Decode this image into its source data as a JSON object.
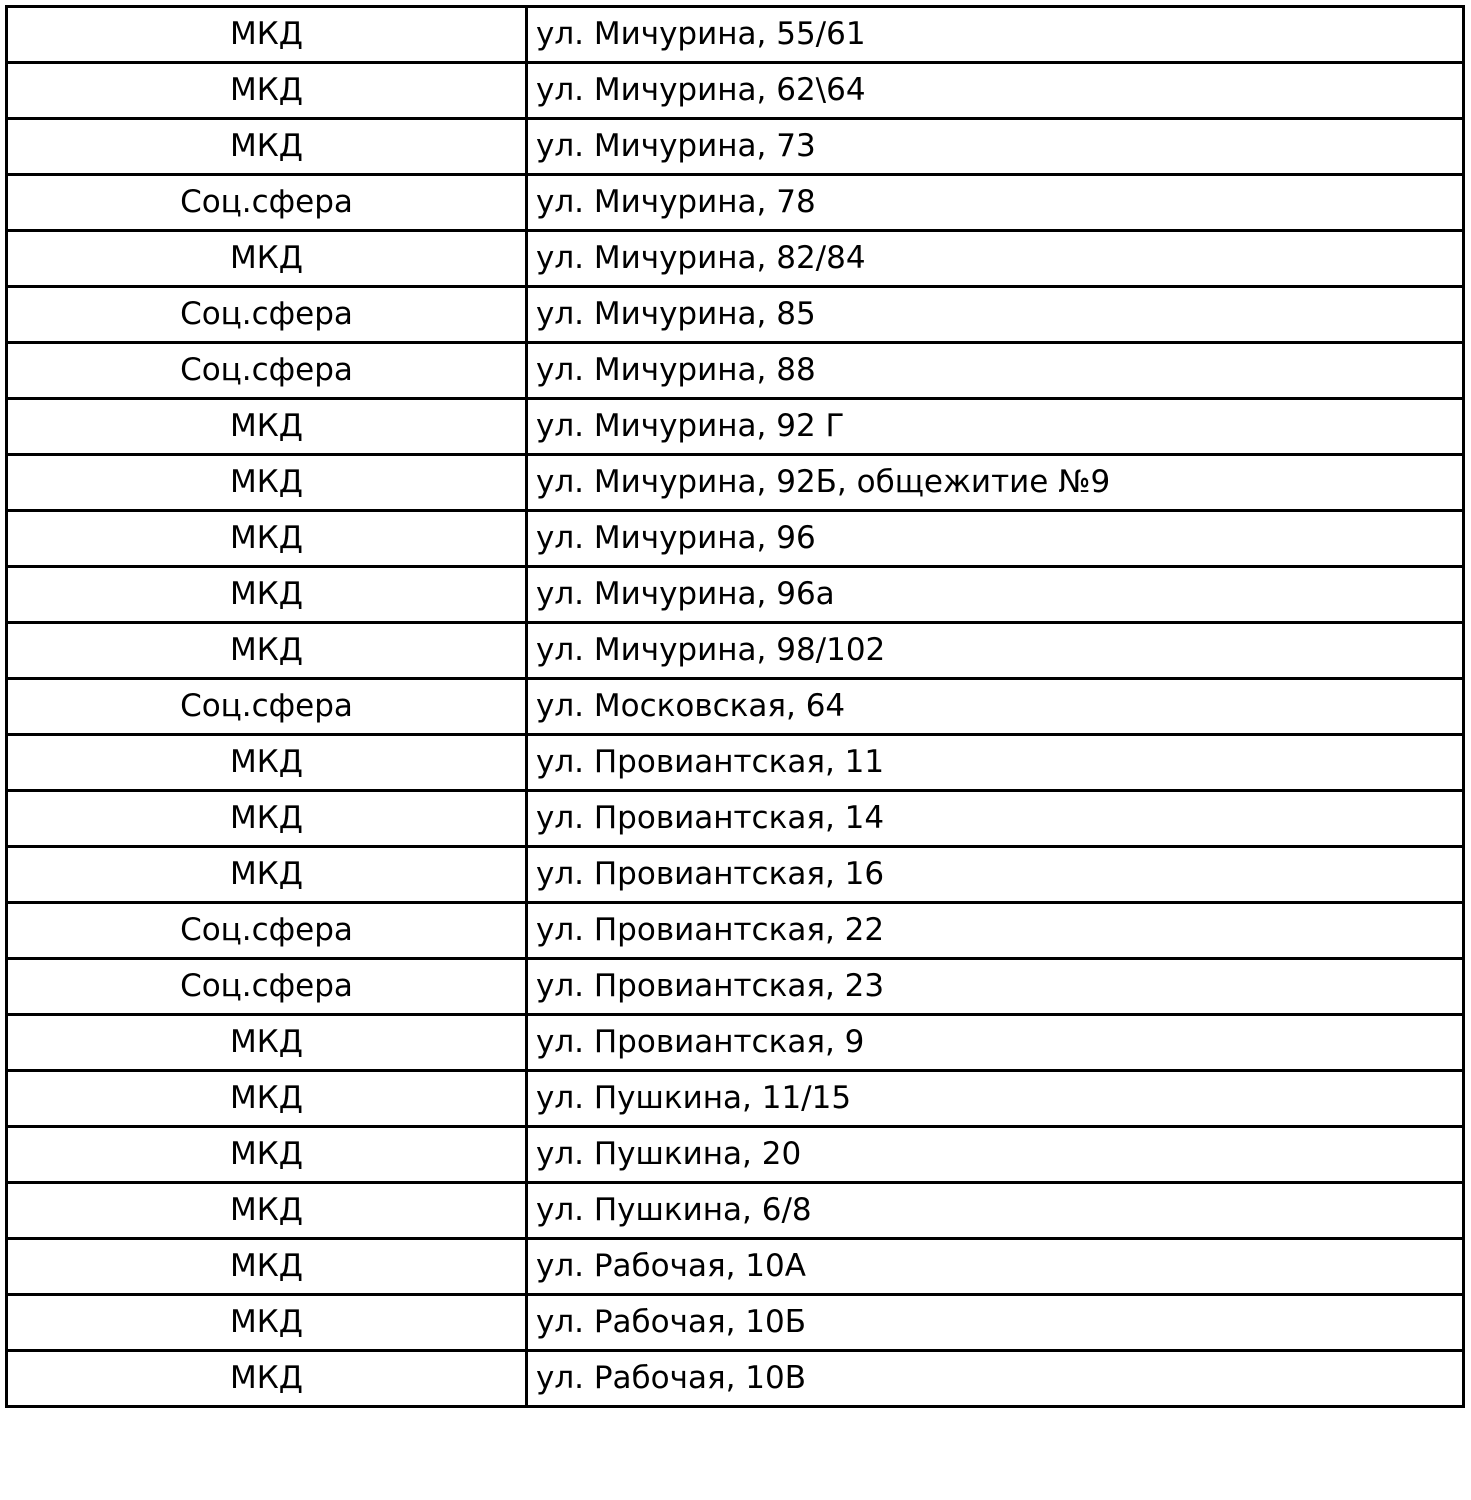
{
  "rows": [
    {
      "type": "МКД",
      "address": "ул. Мичурина, 55/61"
    },
    {
      "type": "МКД",
      "address": "ул. Мичурина, 62\\64"
    },
    {
      "type": "МКД",
      "address": "ул. Мичурина, 73"
    },
    {
      "type": "Соц.сфера",
      "address": "ул. Мичурина, 78"
    },
    {
      "type": "МКД",
      "address": "ул. Мичурина, 82/84"
    },
    {
      "type": "Соц.сфера",
      "address": "ул. Мичурина, 85"
    },
    {
      "type": "Соц.сфера",
      "address": "ул. Мичурина, 88"
    },
    {
      "type": "МКД",
      "address": "ул. Мичурина, 92 Г"
    },
    {
      "type": "МКД",
      "address": "ул. Мичурина, 92Б, общежитие  №9"
    },
    {
      "type": "МКД",
      "address": "ул. Мичурина, 96"
    },
    {
      "type": "МКД",
      "address": "ул. Мичурина, 96а"
    },
    {
      "type": "МКД",
      "address": "ул. Мичурина, 98/102"
    },
    {
      "type": "Соц.сфера",
      "address": "ул. Московская, 64"
    },
    {
      "type": "МКД",
      "address": "ул. Провиантская, 11"
    },
    {
      "type": "МКД",
      "address": "ул. Провиантская, 14"
    },
    {
      "type": "МКД",
      "address": "ул. Провиантская, 16"
    },
    {
      "type": "Соц.сфера",
      "address": "ул. Провиантская, 22"
    },
    {
      "type": "Соц.сфера",
      "address": "ул. Провиантская, 23"
    },
    {
      "type": "МКД",
      "address": "ул. Провиантская, 9"
    },
    {
      "type": "МКД",
      "address": "ул. Пушкина, 11/15"
    },
    {
      "type": "МКД",
      "address": "ул. Пушкина, 20"
    },
    {
      "type": "МКД",
      "address": "ул. Пушкина, 6/8"
    },
    {
      "type": "МКД",
      "address": "ул. Рабочая, 10А"
    },
    {
      "type": "МКД",
      "address": "ул. Рабочая, 10Б"
    },
    {
      "type": "МКД",
      "address": "ул. Рабочая, 10В"
    }
  ]
}
